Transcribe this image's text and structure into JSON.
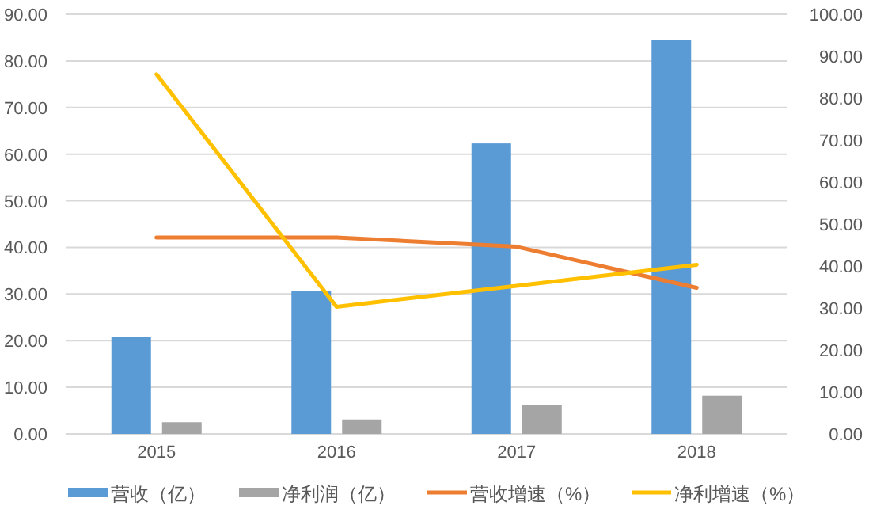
{
  "chart_data": {
    "type": "bar",
    "categories": [
      "2015",
      "2016",
      "2017",
      "2018"
    ],
    "series": [
      {
        "name": "营收（亿）",
        "color": "#5b9bd5",
        "values": [
          20.8,
          30.7,
          62.3,
          84.4
        ]
      },
      {
        "name": "净利润（亿）",
        "color": "#a5a5a5",
        "values": [
          2.5,
          3.1,
          6.2,
          8.2
        ]
      },
      {
        "name": "营收增速（%）",
        "type": "line",
        "axis": "y2",
        "color": "#ed7d31",
        "values": [
          46.8,
          46.8,
          44.6,
          34.8
        ]
      },
      {
        "name": "净利增速（%）",
        "type": "line",
        "axis": "y2",
        "color": "#ffc000",
        "values": [
          85.7,
          30.3,
          35.3,
          40.3
        ]
      }
    ],
    "ylim": [
      0,
      90
    ],
    "yticks": [
      {
        "value": 0,
        "label": "0.00"
      },
      {
        "value": 10,
        "label": "10.00"
      },
      {
        "value": 20,
        "label": "20.00"
      },
      {
        "value": 30,
        "label": "30.00"
      },
      {
        "value": 40,
        "label": "40.00"
      },
      {
        "value": 50,
        "label": "50.00"
      },
      {
        "value": 60,
        "label": "60.00"
      },
      {
        "value": 70,
        "label": "70.00"
      },
      {
        "value": 80,
        "label": "80.00"
      },
      {
        "value": 90,
        "label": "90.00"
      }
    ],
    "y2lim": [
      0,
      100
    ],
    "y2ticks": [
      {
        "value": 0,
        "label": "0.00"
      },
      {
        "value": 10,
        "label": "10.00"
      },
      {
        "value": 20,
        "label": "20.00"
      },
      {
        "value": 30,
        "label": "30.00"
      },
      {
        "value": 40,
        "label": "40.00"
      },
      {
        "value": 50,
        "label": "50.00"
      },
      {
        "value": 60,
        "label": "60.00"
      },
      {
        "value": 70,
        "label": "70.00"
      },
      {
        "value": 80,
        "label": "80.00"
      },
      {
        "value": 90,
        "label": "90.00"
      },
      {
        "value": 100,
        "label": "100.00"
      }
    ],
    "grid": "y",
    "legend": "bottom"
  }
}
